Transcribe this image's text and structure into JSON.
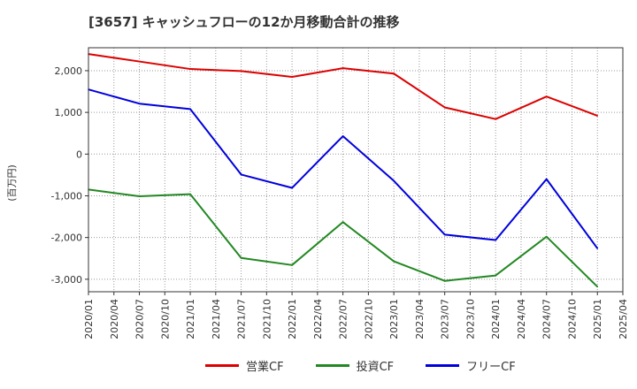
{
  "chart_data": {
    "type": "line",
    "title": "[3657]  キャッシュフローの12か月移動合計の推移",
    "ylabel": "(百万円)",
    "xlabel": "",
    "ylim": [
      -3300,
      2550
    ],
    "yticks": [
      2000,
      1000,
      0,
      -1000,
      -2000,
      -3000
    ],
    "ytick_labels": [
      "2,000",
      "1,000",
      "0",
      "-1,000",
      "-2,000",
      "-3,000"
    ],
    "xticks": [
      "2020/01",
      "2020/04",
      "2020/07",
      "2020/10",
      "2021/01",
      "2021/04",
      "2021/07",
      "2021/10",
      "2022/01",
      "2022/04",
      "2022/07",
      "2022/10",
      "2023/01",
      "2023/04",
      "2023/07",
      "2023/10",
      "2024/01",
      "2024/04",
      "2024/07",
      "2024/10",
      "2025/01",
      "2025/04"
    ],
    "x": [
      "2020/01",
      "2020/07",
      "2021/01",
      "2021/07",
      "2022/01",
      "2022/07",
      "2023/01",
      "2023/07",
      "2024/01",
      "2024/07",
      "2025/01"
    ],
    "series": [
      {
        "name": "営業CF",
        "color": "#dd0000",
        "values": [
          2400,
          2220,
          2040,
          1990,
          1850,
          2060,
          1930,
          1120,
          840,
          1380,
          920
        ]
      },
      {
        "name": "投資CF",
        "color": "#228822",
        "values": [
          -850,
          -1010,
          -960,
          -2490,
          -2660,
          -1630,
          -2570,
          -3040,
          -2910,
          -1980,
          -3180
        ]
      },
      {
        "name": "フリーCF",
        "color": "#0000dd",
        "values": [
          1550,
          1210,
          1080,
          -490,
          -810,
          430,
          -640,
          -1930,
          -2060,
          -600,
          -2260
        ]
      }
    ]
  }
}
